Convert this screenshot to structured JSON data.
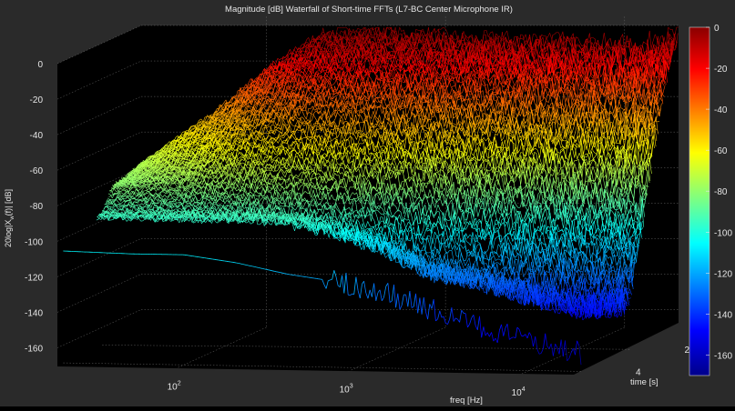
{
  "chart_data": {
    "type": "waterfall",
    "title": "Magnitude [dB] Waterfall of Short-time FFTs (L7-BC Center Microphone IR)",
    "xlabel": "freq [Hz]",
    "ylabel": "time [s]",
    "zlabel": "20log|X_w(f)| [dB]",
    "zlabel_main": "20log|X",
    "zlabel_sub": "w",
    "zlabel_tail": "(f)|   [dB]",
    "x_scale": "log",
    "xlim": [
      20,
      20000
    ],
    "x_ticks": [
      {
        "value": 100,
        "base": "10",
        "exp": "2"
      },
      {
        "value": 1000,
        "base": "10",
        "exp": "3"
      },
      {
        "value": 10000,
        "base": "10",
        "exp": "4"
      }
    ],
    "ylim": [
      0,
      4.3
    ],
    "y_ticks": [
      {
        "value": 2,
        "label": "2"
      },
      {
        "value": 4,
        "label": "4"
      }
    ],
    "zlim": [
      -170,
      5
    ],
    "z_ticks": [
      "0",
      "-20",
      "-40",
      "-60",
      "-80",
      "-100",
      "-120",
      "-140",
      "-160"
    ],
    "colorbar": {
      "colormap": "jet",
      "range": [
        -170,
        0
      ],
      "ticks": [
        "0",
        "-20",
        "-40",
        "-60",
        "-80",
        "-100",
        "-120",
        "-140",
        "-160"
      ]
    },
    "grid": true,
    "background": "#000000",
    "figure_background": "#2a2a2a",
    "series": [
      {
        "time": 0.0,
        "x": [
          20,
          50,
          100,
          200,
          400,
          800,
          1500,
          3000,
          6000,
          12000,
          20000
        ],
        "z": [
          -78,
          -50,
          -25,
          -5,
          -3,
          -5,
          -8,
          -8,
          -10,
          -12,
          -5
        ]
      },
      {
        "time": 0.5,
        "x": [
          20,
          50,
          100,
          200,
          400,
          800,
          1500,
          3000,
          6000,
          12000,
          20000
        ],
        "z": [
          -80,
          -62,
          -38,
          -20,
          -15,
          -20,
          -22,
          -26,
          -30,
          -35,
          -25
        ]
      },
      {
        "time": 1.0,
        "x": [
          20,
          50,
          100,
          200,
          400,
          800,
          1500,
          3000,
          6000,
          12000,
          20000
        ],
        "z": [
          -82,
          -72,
          -55,
          -40,
          -35,
          -42,
          -48,
          -55,
          -62,
          -68,
          -60
        ]
      },
      {
        "time": 1.5,
        "x": [
          20,
          50,
          100,
          200,
          400,
          800,
          1500,
          3000,
          6000,
          12000,
          20000
        ],
        "z": [
          -83,
          -80,
          -75,
          -68,
          -65,
          -72,
          -78,
          -88,
          -100,
          -110,
          -105
        ]
      },
      {
        "time": 2.0,
        "x": [
          20,
          50,
          100,
          200,
          400,
          800,
          1500,
          3000,
          6000,
          12000,
          20000
        ],
        "z": [
          -95,
          -95,
          -95,
          -95,
          -100,
          -110,
          -125,
          -130,
          -138,
          -145,
          -140
        ]
      },
      {
        "time": 4.0,
        "x": [
          20,
          50,
          100,
          200,
          400,
          800,
          1500,
          3000,
          6000,
          12000,
          20000
        ],
        "z": [
          -107,
          -108,
          -108,
          -112,
          -118,
          -122,
          -128,
          -138,
          -148,
          -155,
          -160
        ]
      }
    ]
  }
}
